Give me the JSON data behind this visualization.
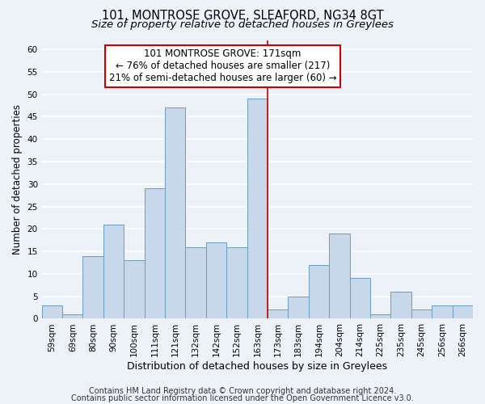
{
  "title": "101, MONTROSE GROVE, SLEAFORD, NG34 8GT",
  "subtitle": "Size of property relative to detached houses in Greylees",
  "xlabel": "Distribution of detached houses by size in Greylees",
  "ylabel": "Number of detached properties",
  "bar_labels": [
    "59sqm",
    "69sqm",
    "80sqm",
    "90sqm",
    "100sqm",
    "111sqm",
    "121sqm",
    "132sqm",
    "142sqm",
    "152sqm",
    "163sqm",
    "173sqm",
    "183sqm",
    "194sqm",
    "204sqm",
    "214sqm",
    "225sqm",
    "235sqm",
    "245sqm",
    "256sqm",
    "266sqm"
  ],
  "bar_values": [
    3,
    1,
    14,
    21,
    13,
    29,
    47,
    16,
    17,
    16,
    49,
    2,
    5,
    12,
    19,
    9,
    1,
    6,
    2,
    3,
    3
  ],
  "bar_color": "#c8d8eb",
  "bar_edgecolor": "#6b9dc2",
  "highlight_index": 11,
  "highlight_line_color": "#cc0000",
  "ylim": [
    0,
    62
  ],
  "yticks": [
    0,
    5,
    10,
    15,
    20,
    25,
    30,
    35,
    40,
    45,
    50,
    55,
    60
  ],
  "annotation_title": "101 MONTROSE GROVE: 171sqm",
  "annotation_line1": "← 76% of detached houses are smaller (217)",
  "annotation_line2": "21% of semi-detached houses are larger (60) →",
  "annotation_box_facecolor": "#ffffff",
  "annotation_box_edgecolor": "#cc0000",
  "footer1": "Contains HM Land Registry data © Crown copyright and database right 2024.",
  "footer2": "Contains public sector information licensed under the Open Government Licence v3.0.",
  "background_color": "#edf2f9",
  "grid_color": "#ffffff",
  "title_fontsize": 10.5,
  "subtitle_fontsize": 9.5,
  "xlabel_fontsize": 9,
  "ylabel_fontsize": 8.5,
  "tick_fontsize": 7.5,
  "annotation_fontsize": 8.5,
  "footer_fontsize": 7
}
